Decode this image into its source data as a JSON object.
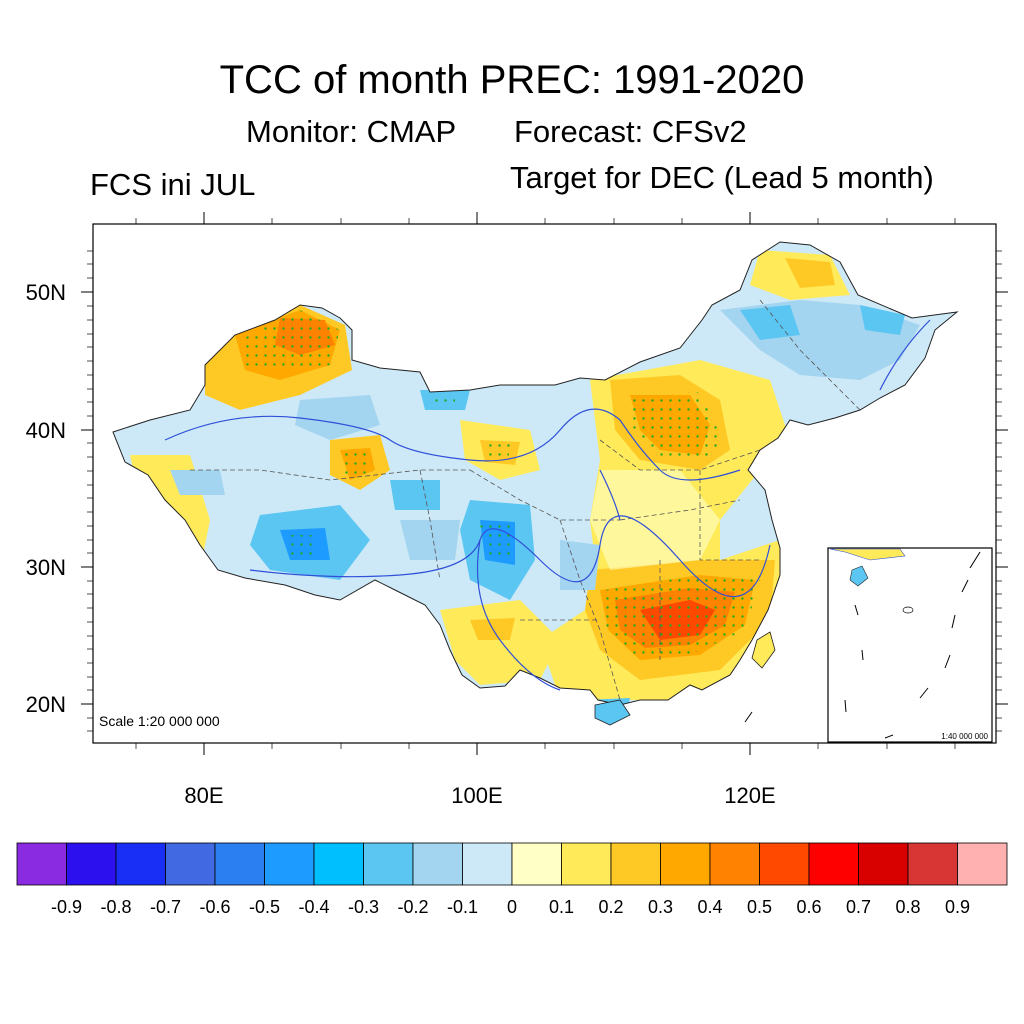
{
  "title": "TCC of month PREC: 1991-2020",
  "subtitle_left": "Monitor: CMAP",
  "subtitle_right": "Forecast: CFSv2",
  "left_string": "FCS ini JUL",
  "right_string": "Target for DEC (Lead 5 month)",
  "map": {
    "lat_labels": [
      "50N",
      "40N",
      "30N",
      "20N"
    ],
    "lon_labels": [
      "80E",
      "100E",
      "120E"
    ],
    "scale_text": "Scale 1:20 000 000",
    "inset_scale_text": "1:40 000 000",
    "stipple_color": "#22aa22"
  },
  "colorbar": {
    "levels": [
      "-0.9",
      "-0.8",
      "-0.7",
      "-0.6",
      "-0.5",
      "-0.4",
      "-0.3",
      "-0.2",
      "-0.1",
      "0",
      "0.1",
      "0.2",
      "0.3",
      "0.4",
      "0.5",
      "0.6",
      "0.7",
      "0.8",
      "0.9"
    ],
    "colors": [
      "#8a2be2",
      "#2d10ee",
      "#1a2ff5",
      "#4169e1",
      "#2b7ff0",
      "#1e9bff",
      "#00bfff",
      "#5cc6f2",
      "#a3d4f0",
      "#cde9f7",
      "#ffffc6",
      "#ffea5a",
      "#ffc925",
      "#ffa800",
      "#ff8200",
      "#ff4800",
      "#ff0000",
      "#d90000",
      "#d83535",
      "#ffb0b0"
    ]
  }
}
